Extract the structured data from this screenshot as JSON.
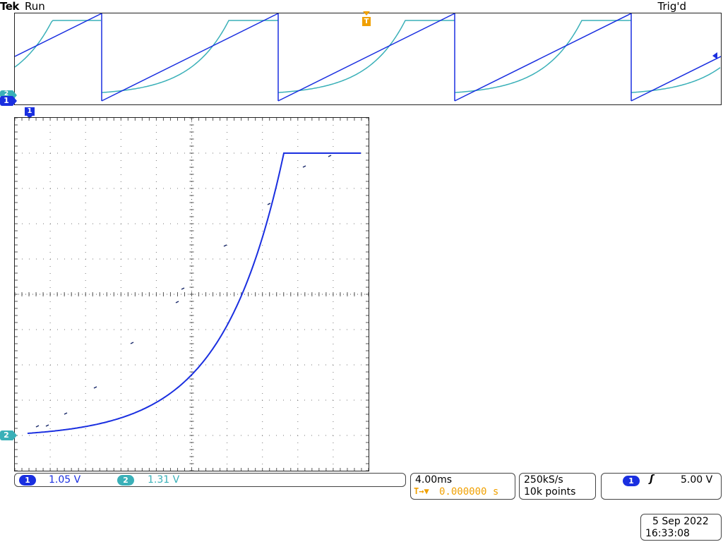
{
  "header": {
    "brand": "Tek",
    "status": "Run",
    "trigger_state": "Trig'd"
  },
  "markers": {
    "ch1": "1",
    "ch2": "2",
    "trigger": "T"
  },
  "channels": {
    "ch1": {
      "label": "1",
      "scale": "1.05 V",
      "color": "#1a2fe0"
    },
    "ch2": {
      "label": "2",
      "scale": "1.31 V",
      "color": "#3ab0b8"
    }
  },
  "timebase": {
    "per_div": "4.00ms",
    "trigger_icon": "T→▼",
    "position": "0.000000 s",
    "accent": "#f0a000"
  },
  "acquisition": {
    "rate": "250kS/s",
    "record": "10k points"
  },
  "trigger": {
    "source": "1",
    "slope_icon": "rising-edge-icon",
    "slope_glyph": "ʃ",
    "level": "5.00 V"
  },
  "datetime": {
    "date": "5 Sep  2022",
    "time": "16:33:08"
  }
}
